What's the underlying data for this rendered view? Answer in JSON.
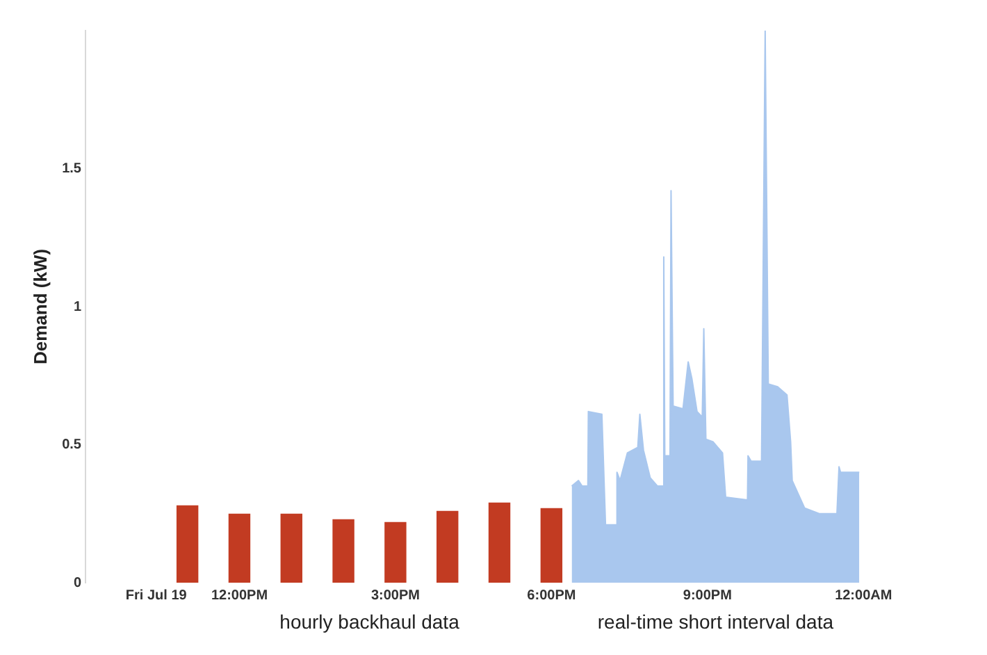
{
  "chart_data": {
    "type": "bar",
    "ylabel": "Demand (kW)",
    "annotations": [
      "hourly backhaul data",
      "real-time short interval data"
    ],
    "series": [
      {
        "color": "#c23b22",
        "x": [
          11,
          12,
          13,
          14,
          15,
          16,
          17,
          18
        ],
        "values": [
          0.28,
          0.25,
          0.25,
          0.23,
          0.22,
          0.26,
          0.29,
          0.27
        ]
      },
      {
        "type": "area",
        "color": "#a9c7ee",
        "x": [
          18.39,
          18.52,
          18.59,
          18.7,
          18.71,
          18.97,
          19.04,
          19.25,
          19.26,
          19.32,
          19.46,
          19.66,
          19.7,
          19.77,
          19.9,
          20.04,
          20.15,
          20.16,
          20.18,
          20.28,
          20.3,
          20.34,
          20.53,
          20.63,
          20.7,
          20.8,
          20.9,
          20.93,
          20.97,
          21.11,
          21.29,
          21.35,
          21.77,
          21.78,
          21.84,
          22.04,
          22.11,
          22.17,
          22.35,
          22.53,
          22.6,
          22.63,
          22.87,
          23.15,
          23.49,
          23.53,
          23.56,
          23.91,
          23.92
        ],
        "values": [
          0.35,
          0.37,
          0.35,
          0.35,
          0.62,
          0.61,
          0.21,
          0.21,
          0.4,
          0.37,
          0.47,
          0.49,
          0.61,
          0.48,
          0.38,
          0.35,
          0.35,
          1.18,
          0.46,
          0.46,
          1.42,
          0.64,
          0.63,
          0.8,
          0.74,
          0.62,
          0.6,
          0.92,
          0.52,
          0.51,
          0.47,
          0.31,
          0.3,
          0.46,
          0.44,
          0.44,
          2.0,
          0.72,
          0.71,
          0.68,
          0.51,
          0.37,
          0.27,
          0.25,
          0.25,
          0.42,
          0.4,
          0.4,
          0.4
        ]
      }
    ],
    "xlim": [
      10.4,
      24
    ],
    "xticks": [
      {
        "value": 10.4,
        "label": "Fri Jul 19"
      },
      {
        "value": 12,
        "label": "12:00PM"
      },
      {
        "value": 15,
        "label": "3:00PM"
      },
      {
        "value": 18,
        "label": "6:00PM"
      },
      {
        "value": 21,
        "label": "9:00PM"
      },
      {
        "value": 24,
        "label": "12:00AM"
      }
    ],
    "ylim": [
      0,
      2
    ],
    "yticks": [
      0,
      0.5,
      1,
      1.5
    ],
    "grid": false,
    "legend": false
  }
}
